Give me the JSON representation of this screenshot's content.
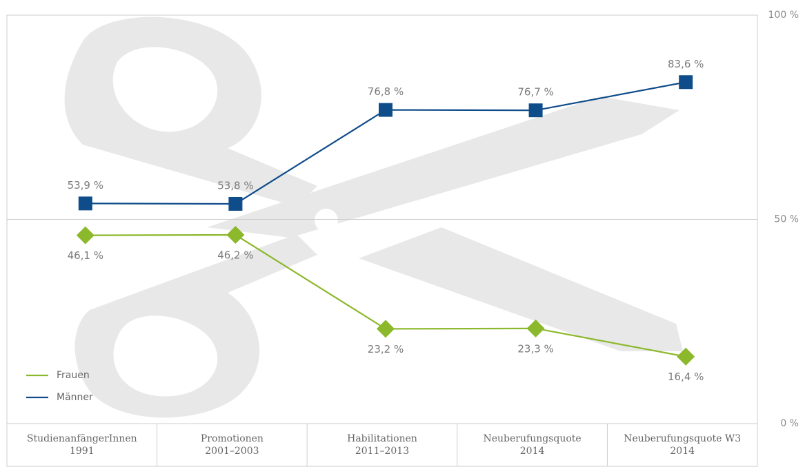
{
  "chart_data": {
    "type": "line",
    "categories": [
      [
        "StudienanfängerInnen",
        "1991"
      ],
      [
        "Promotionen",
        "2001–2003"
      ],
      [
        "Habilitationen",
        "2011–2013"
      ],
      [
        "Neuberufungsquote",
        "2014"
      ],
      [
        "Neuberufungsquote W3",
        "2014"
      ]
    ],
    "series": [
      {
        "name": "Frauen",
        "color": "#8cb82b",
        "marker": "diamond",
        "label_position": "below",
        "values": [
          46.1,
          46.2,
          23.2,
          23.3,
          16.4
        ],
        "value_labels": [
          "46,1 %",
          "46,2 %",
          "23,2 %",
          "23,3 %",
          "16,4 %"
        ]
      },
      {
        "name": "Männer",
        "color": "#0f4c8a",
        "marker": "square",
        "label_position": "above",
        "values": [
          53.9,
          53.8,
          76.8,
          76.7,
          83.6
        ],
        "value_labels": [
          "53,9 %",
          "53,8 %",
          "76,8 %",
          "76,7 %",
          "83,6 %"
        ]
      }
    ],
    "ylim": [
      0,
      100
    ],
    "yticks": [
      {
        "value": 0,
        "label": "0 %"
      },
      {
        "value": 50,
        "label": "50 %"
      },
      {
        "value": 100,
        "label": "100 %"
      }
    ],
    "grid": true,
    "legend": "lower left"
  }
}
